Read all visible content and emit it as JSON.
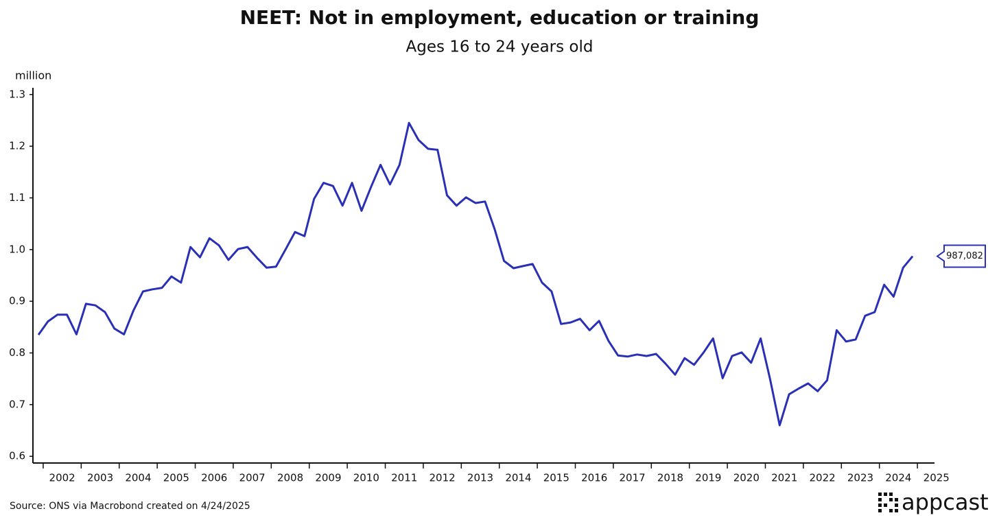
{
  "chart_data": {
    "type": "line",
    "title": "NEET: Not in employment, education or training",
    "subtitle": "Ages 16 to 24 years old",
    "y_label": "million",
    "source": "Source: ONS via Macrobond created on 4/24/2025",
    "logo": "appcast",
    "x": [
      2001.875,
      2002.125,
      2002.375,
      2002.625,
      2002.875,
      2003.125,
      2003.375,
      2003.625,
      2003.875,
      2004.125,
      2004.375,
      2004.625,
      2004.875,
      2005.125,
      2005.375,
      2005.625,
      2005.875,
      2006.125,
      2006.375,
      2006.625,
      2006.875,
      2007.125,
      2007.375,
      2007.625,
      2007.875,
      2008.125,
      2008.375,
      2008.625,
      2008.875,
      2009.125,
      2009.375,
      2009.625,
      2009.875,
      2010.125,
      2010.375,
      2010.625,
      2010.875,
      2011.125,
      2011.375,
      2011.625,
      2011.875,
      2012.125,
      2012.375,
      2012.625,
      2012.875,
      2013.125,
      2013.375,
      2013.625,
      2013.875,
      2014.125,
      2014.375,
      2014.625,
      2014.875,
      2015.125,
      2015.375,
      2015.625,
      2015.875,
      2016.125,
      2016.375,
      2016.625,
      2016.875,
      2017.125,
      2017.375,
      2017.625,
      2017.875,
      2018.125,
      2018.375,
      2018.625,
      2018.875,
      2019.125,
      2019.375,
      2019.625,
      2019.875,
      2020.125,
      2020.375,
      2020.625,
      2020.875,
      2021.125,
      2021.375,
      2021.625,
      2021.875,
      2022.125,
      2022.375,
      2022.625,
      2022.875,
      2023.125,
      2023.375,
      2023.625,
      2023.875,
      2024.125,
      2024.375,
      2024.625,
      2024.875
    ],
    "series": [
      {
        "name": "NEET",
        "color": "#2a30b5",
        "values": [
          0.835,
          0.861,
          0.874,
          0.874,
          0.836,
          0.895,
          0.892,
          0.879,
          0.847,
          0.836,
          0.882,
          0.919,
          0.923,
          0.926,
          0.948,
          0.936,
          1.005,
          0.985,
          1.022,
          1.008,
          0.98,
          1.001,
          1.005,
          0.984,
          0.965,
          0.967,
          1.0,
          1.034,
          1.026,
          1.098,
          1.129,
          1.123,
          1.085,
          1.129,
          1.075,
          1.121,
          1.164,
          1.126,
          1.164,
          1.245,
          1.212,
          1.195,
          1.193,
          1.105,
          1.085,
          1.101,
          1.09,
          1.093,
          1.04,
          0.978,
          0.964,
          0.968,
          0.972,
          0.936,
          0.919,
          0.856,
          0.859,
          0.866,
          0.844,
          0.862,
          0.823,
          0.795,
          0.793,
          0.797,
          0.794,
          0.798,
          0.779,
          0.758,
          0.79,
          0.777,
          0.801,
          0.828,
          0.751,
          0.794,
          0.801,
          0.781,
          0.828,
          0.749,
          0.66,
          0.72,
          0.731,
          0.741,
          0.726,
          0.747,
          0.844,
          0.822,
          0.826,
          0.872,
          0.879,
          0.932,
          0.909,
          0.965,
          0.987082
        ],
        "value_labels": [
          null,
          null,
          null,
          null,
          null,
          null,
          null,
          null,
          null,
          null,
          null,
          null,
          null,
          null,
          null,
          null,
          null,
          null,
          null,
          null,
          null,
          null,
          null,
          null,
          null,
          null,
          null,
          null,
          null,
          null,
          null,
          null,
          null,
          null,
          null,
          null,
          null,
          null,
          null,
          null,
          null,
          null,
          null,
          null,
          null,
          null,
          null,
          null,
          null,
          null,
          null,
          null,
          null,
          null,
          null,
          null,
          null,
          null,
          null,
          null,
          null,
          null,
          null,
          null,
          null,
          null,
          null,
          null,
          null,
          null,
          null,
          null,
          null,
          null,
          null,
          null,
          null,
          null,
          null,
          null,
          null,
          null,
          null,
          null,
          null,
          null,
          null,
          null,
          null,
          null,
          null,
          null,
          "987,082"
        ]
      }
    ],
    "xlim": [
      2001.73,
      2025.45
    ],
    "xticks": [
      2002,
      2003,
      2004,
      2005,
      2006,
      2007,
      2008,
      2009,
      2010,
      2011,
      2012,
      2013,
      2014,
      2015,
      2016,
      2017,
      2018,
      2019,
      2020,
      2021,
      2022,
      2023,
      2024,
      2025
    ],
    "ylim": [
      0.587,
      1.313
    ],
    "yticks": [
      0.6,
      0.7,
      0.8,
      0.9,
      {
        "value": 1,
        "label": "1.0"
      },
      1.1,
      1.2,
      1.3
    ],
    "grid": false
  }
}
